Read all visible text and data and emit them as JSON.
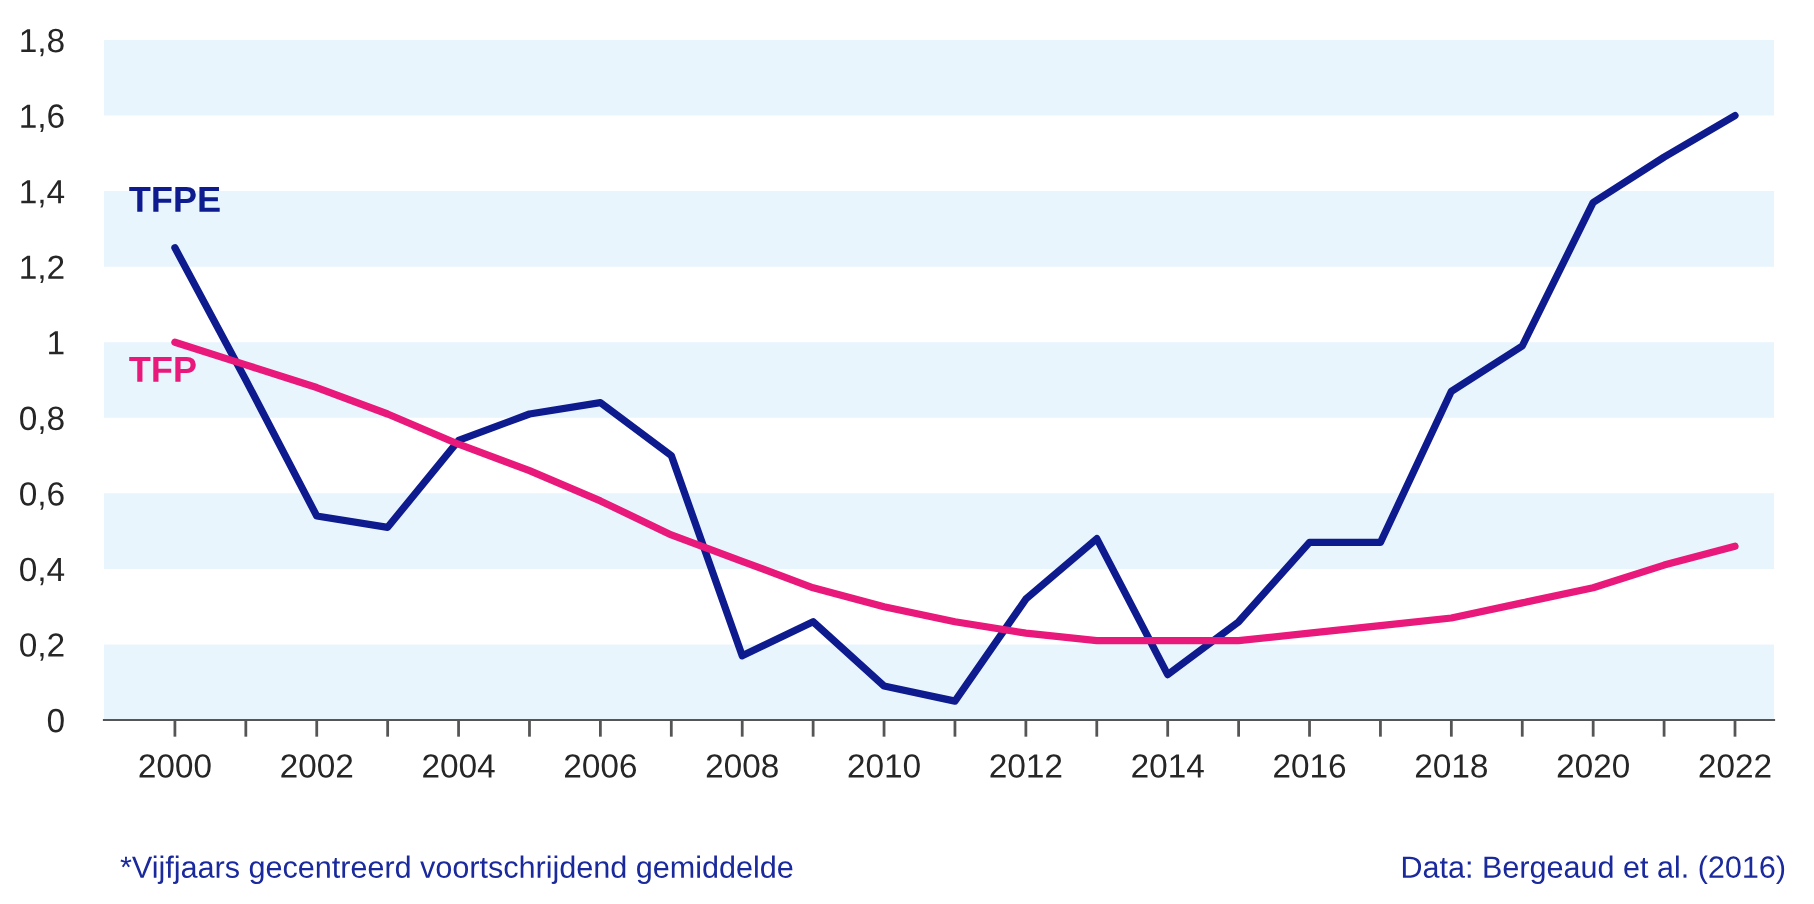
{
  "chart_data": {
    "type": "line",
    "x": [
      2000,
      2001,
      2002,
      2003,
      2004,
      2005,
      2006,
      2007,
      2008,
      2009,
      2010,
      2011,
      2012,
      2013,
      2014,
      2015,
      2016,
      2017,
      2018,
      2019,
      2020,
      2021,
      2022
    ],
    "series": [
      {
        "name": "TFPE",
        "color": "#0d1b8e",
        "values": [
          1.25,
          0.9,
          0.54,
          0.51,
          0.74,
          0.81,
          0.84,
          0.7,
          0.17,
          0.26,
          0.09,
          0.05,
          0.32,
          0.48,
          0.12,
          0.26,
          0.47,
          0.47,
          0.87,
          0.99,
          1.37,
          1.49,
          1.6
        ]
      },
      {
        "name": "TFP",
        "color": "#e8197a",
        "values": [
          1.0,
          0.94,
          0.88,
          0.81,
          0.73,
          0.66,
          0.58,
          0.49,
          0.42,
          0.35,
          0.3,
          0.26,
          0.23,
          0.21,
          0.21,
          0.21,
          0.23,
          0.25,
          0.27,
          0.31,
          0.35,
          0.41,
          0.46
        ]
      }
    ],
    "xlim": [
      1999,
      2022.55
    ],
    "xticks": [
      2000,
      {
        "value": 2001,
        "label": null
      },
      2002,
      {
        "value": 2003,
        "label": null
      },
      2004,
      {
        "value": 2005,
        "label": null
      },
      2006,
      {
        "value": 2007,
        "label": null
      },
      2008,
      {
        "value": 2009,
        "label": null
      },
      2010,
      {
        "value": 2011,
        "label": null
      },
      2012,
      {
        "value": 2013,
        "label": null
      },
      2014,
      {
        "value": 2015,
        "label": null
      },
      2016,
      {
        "value": 2017,
        "label": null
      },
      2018,
      {
        "value": 2019,
        "label": null
      },
      2020,
      {
        "value": 2021,
        "label": null
      },
      2022
    ],
    "ylim": [
      0,
      1.8
    ],
    "yticks": [
      0,
      {
        "value": 0.2,
        "label": "0,2"
      },
      {
        "value": 0.4,
        "label": "0,4"
      },
      {
        "value": 0.6,
        "label": "0,6"
      },
      {
        "value": 0.8,
        "label": "0,8"
      },
      1,
      {
        "value": 1.2,
        "label": "1,2"
      },
      {
        "value": 1.4,
        "label": "1,4"
      },
      {
        "value": 1.6,
        "label": "1,6"
      },
      {
        "value": 1.8,
        "label": "1,8"
      }
    ],
    "bands": [
      {
        "axis": "y",
        "from": 0,
        "to": 0.2,
        "color": "#e9f5fd"
      },
      {
        "axis": "y",
        "from": 0.4,
        "to": 0.6,
        "color": "#e9f5fd"
      },
      {
        "axis": "y",
        "from": 0.8,
        "to": 1.0,
        "color": "#e9f5fd"
      },
      {
        "axis": "y",
        "from": 1.2,
        "to": 1.4,
        "color": "#e9f5fd"
      },
      {
        "axis": "y",
        "from": 1.6,
        "to": 1.8,
        "color": "#e9f5fd"
      }
    ],
    "grid": false,
    "legend": false,
    "marker": "none",
    "line_style": "solid",
    "annotations": [
      "*Vijfjaars gecentreerd voortschrijdend gemiddelde",
      "Data: Bergeaud et al. (2016)"
    ]
  }
}
